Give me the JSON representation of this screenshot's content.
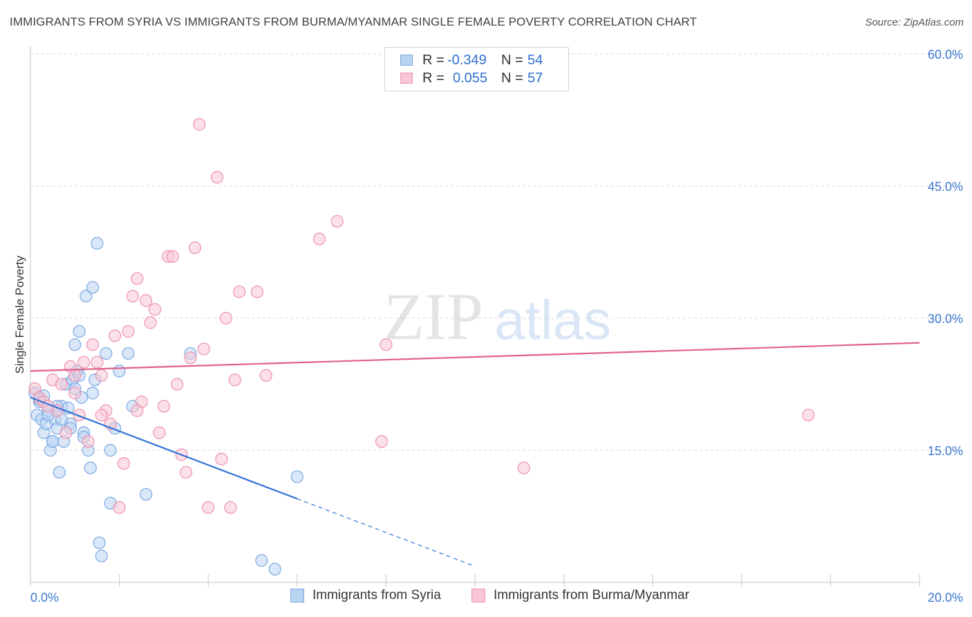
{
  "header": {
    "title": "IMMIGRANTS FROM SYRIA VS IMMIGRANTS FROM BURMA/MYANMAR SINGLE FEMALE POVERTY CORRELATION CHART",
    "source": "Source: ZipAtlas.com"
  },
  "watermark": {
    "zip": "ZIP",
    "atlas": "atlas"
  },
  "stats": {
    "rows": [
      {
        "r_label": "R =",
        "r_value": "-0.349",
        "n_label": "N =",
        "n_value": "54"
      },
      {
        "r_label": "R =",
        "r_value": "0.055",
        "n_label": "N =",
        "n_value": "57"
      }
    ]
  },
  "legend": {
    "items": [
      {
        "label": "Immigrants from Syria"
      },
      {
        "label": "Immigrants from Burma/Myanmar"
      }
    ]
  },
  "colors": {
    "syria_fill": "#b9d3f3",
    "syria_stroke": "#7aa8e0",
    "syria_line": "#2f72d6",
    "burma_fill": "#f8c6d6",
    "burma_stroke": "#ec92b0",
    "burma_line": "#e0608c",
    "tick_text": "#3b76d0",
    "grid": "#d9d9d9"
  },
  "chart_data": {
    "type": "scatter",
    "title": "IMMIGRANTS FROM SYRIA VS IMMIGRANTS FROM BURMA/MYANMAR SINGLE FEMALE POVERTY CORRELATION CHART",
    "xlabel": "",
    "ylabel": "Single Female Poverty",
    "xlim": [
      0,
      20
    ],
    "ylim": [
      0,
      60
    ],
    "x_tick_labels": [
      "0.0%",
      "20.0%"
    ],
    "y_ticks": [
      15,
      30,
      45,
      60
    ],
    "y_tick_labels": [
      "15.0%",
      "30.0%",
      "45.0%",
      "60.0%"
    ],
    "grid": true,
    "legend_position": "bottom",
    "series": [
      {
        "name": "Immigrants from Syria",
        "r": -0.349,
        "n": 54,
        "trend": {
          "x0": 0,
          "y0": 21.0,
          "x1": 6.0,
          "y1": 9.5,
          "dashed_to_x": 10.0
        },
        "points": [
          [
            0.1,
            21.5
          ],
          [
            0.2,
            20.5
          ],
          [
            0.15,
            19.0
          ],
          [
            0.25,
            18.5
          ],
          [
            0.3,
            17.0
          ],
          [
            0.35,
            18.0
          ],
          [
            0.4,
            19.5
          ],
          [
            0.45,
            15.0
          ],
          [
            0.5,
            16.0
          ],
          [
            0.55,
            18.5
          ],
          [
            0.6,
            17.5
          ],
          [
            0.65,
            12.5
          ],
          [
            0.7,
            20.0
          ],
          [
            0.75,
            16.0
          ],
          [
            0.8,
            22.5
          ],
          [
            0.85,
            19.8
          ],
          [
            0.9,
            18.0
          ],
          [
            0.95,
            23.0
          ],
          [
            1.0,
            27.0
          ],
          [
            1.05,
            24.0
          ],
          [
            1.1,
            28.5
          ],
          [
            1.15,
            21.0
          ],
          [
            1.2,
            17.0
          ],
          [
            1.25,
            32.5
          ],
          [
            1.3,
            15.0
          ],
          [
            1.35,
            13.0
          ],
          [
            1.4,
            33.5
          ],
          [
            1.45,
            23.0
          ],
          [
            1.5,
            38.5
          ],
          [
            1.55,
            4.5
          ],
          [
            1.6,
            3.0
          ],
          [
            1.7,
            26.0
          ],
          [
            1.8,
            15.0
          ],
          [
            1.9,
            17.5
          ],
          [
            2.0,
            24.0
          ],
          [
            2.2,
            26.0
          ],
          [
            2.3,
            20.0
          ],
          [
            2.6,
            10.0
          ],
          [
            3.6,
            26.0
          ],
          [
            5.2,
            2.5
          ],
          [
            5.5,
            1.5
          ],
          [
            6.0,
            12.0
          ],
          [
            0.3,
            21.2
          ],
          [
            0.6,
            20.0
          ],
          [
            1.0,
            22.0
          ],
          [
            1.2,
            16.5
          ],
          [
            1.8,
            9.0
          ],
          [
            0.4,
            19.0
          ],
          [
            0.2,
            20.8
          ],
          [
            0.9,
            17.5
          ],
          [
            1.4,
            21.5
          ],
          [
            0.5,
            16.0
          ],
          [
            1.1,
            23.5
          ],
          [
            0.7,
            18.5
          ]
        ]
      },
      {
        "name": "Immigrants from Burma/Myanmar",
        "r": 0.055,
        "n": 57,
        "trend": {
          "x0": 0,
          "y0": 24.0,
          "x1": 20.0,
          "y1": 27.2
        },
        "points": [
          [
            0.1,
            22.0
          ],
          [
            0.2,
            21.0
          ],
          [
            0.3,
            20.5
          ],
          [
            0.5,
            23.0
          ],
          [
            0.6,
            19.5
          ],
          [
            0.8,
            17.0
          ],
          [
            0.9,
            24.5
          ],
          [
            1.0,
            21.5
          ],
          [
            1.1,
            19.0
          ],
          [
            1.2,
            25.0
          ],
          [
            1.3,
            16.0
          ],
          [
            1.4,
            27.0
          ],
          [
            1.5,
            25.0
          ],
          [
            1.6,
            23.5
          ],
          [
            1.7,
            19.5
          ],
          [
            1.8,
            18.0
          ],
          [
            1.9,
            28.0
          ],
          [
            2.0,
            8.5
          ],
          [
            2.1,
            13.5
          ],
          [
            2.2,
            28.5
          ],
          [
            2.3,
            32.5
          ],
          [
            2.4,
            34.5
          ],
          [
            2.5,
            20.5
          ],
          [
            2.6,
            32.0
          ],
          [
            2.7,
            29.5
          ],
          [
            2.8,
            31.0
          ],
          [
            2.9,
            17.0
          ],
          [
            3.0,
            20.0
          ],
          [
            3.1,
            37.0
          ],
          [
            3.2,
            37.0
          ],
          [
            3.3,
            22.5
          ],
          [
            3.4,
            14.5
          ],
          [
            3.5,
            12.5
          ],
          [
            3.6,
            25.5
          ],
          [
            3.7,
            38.0
          ],
          [
            3.8,
            52.0
          ],
          [
            3.9,
            26.5
          ],
          [
            4.0,
            8.5
          ],
          [
            4.2,
            46.0
          ],
          [
            4.3,
            14.0
          ],
          [
            4.4,
            30.0
          ],
          [
            4.5,
            8.5
          ],
          [
            4.6,
            23.0
          ],
          [
            4.7,
            33.0
          ],
          [
            5.1,
            33.0
          ],
          [
            5.3,
            23.5
          ],
          [
            6.5,
            39.0
          ],
          [
            6.9,
            41.0
          ],
          [
            7.9,
            16.0
          ],
          [
            8.0,
            27.0
          ],
          [
            11.1,
            13.0
          ],
          [
            17.5,
            19.0
          ],
          [
            0.4,
            20.0
          ],
          [
            1.0,
            23.5
          ],
          [
            1.6,
            19.0
          ],
          [
            2.4,
            19.5
          ],
          [
            0.7,
            22.5
          ]
        ]
      }
    ]
  }
}
